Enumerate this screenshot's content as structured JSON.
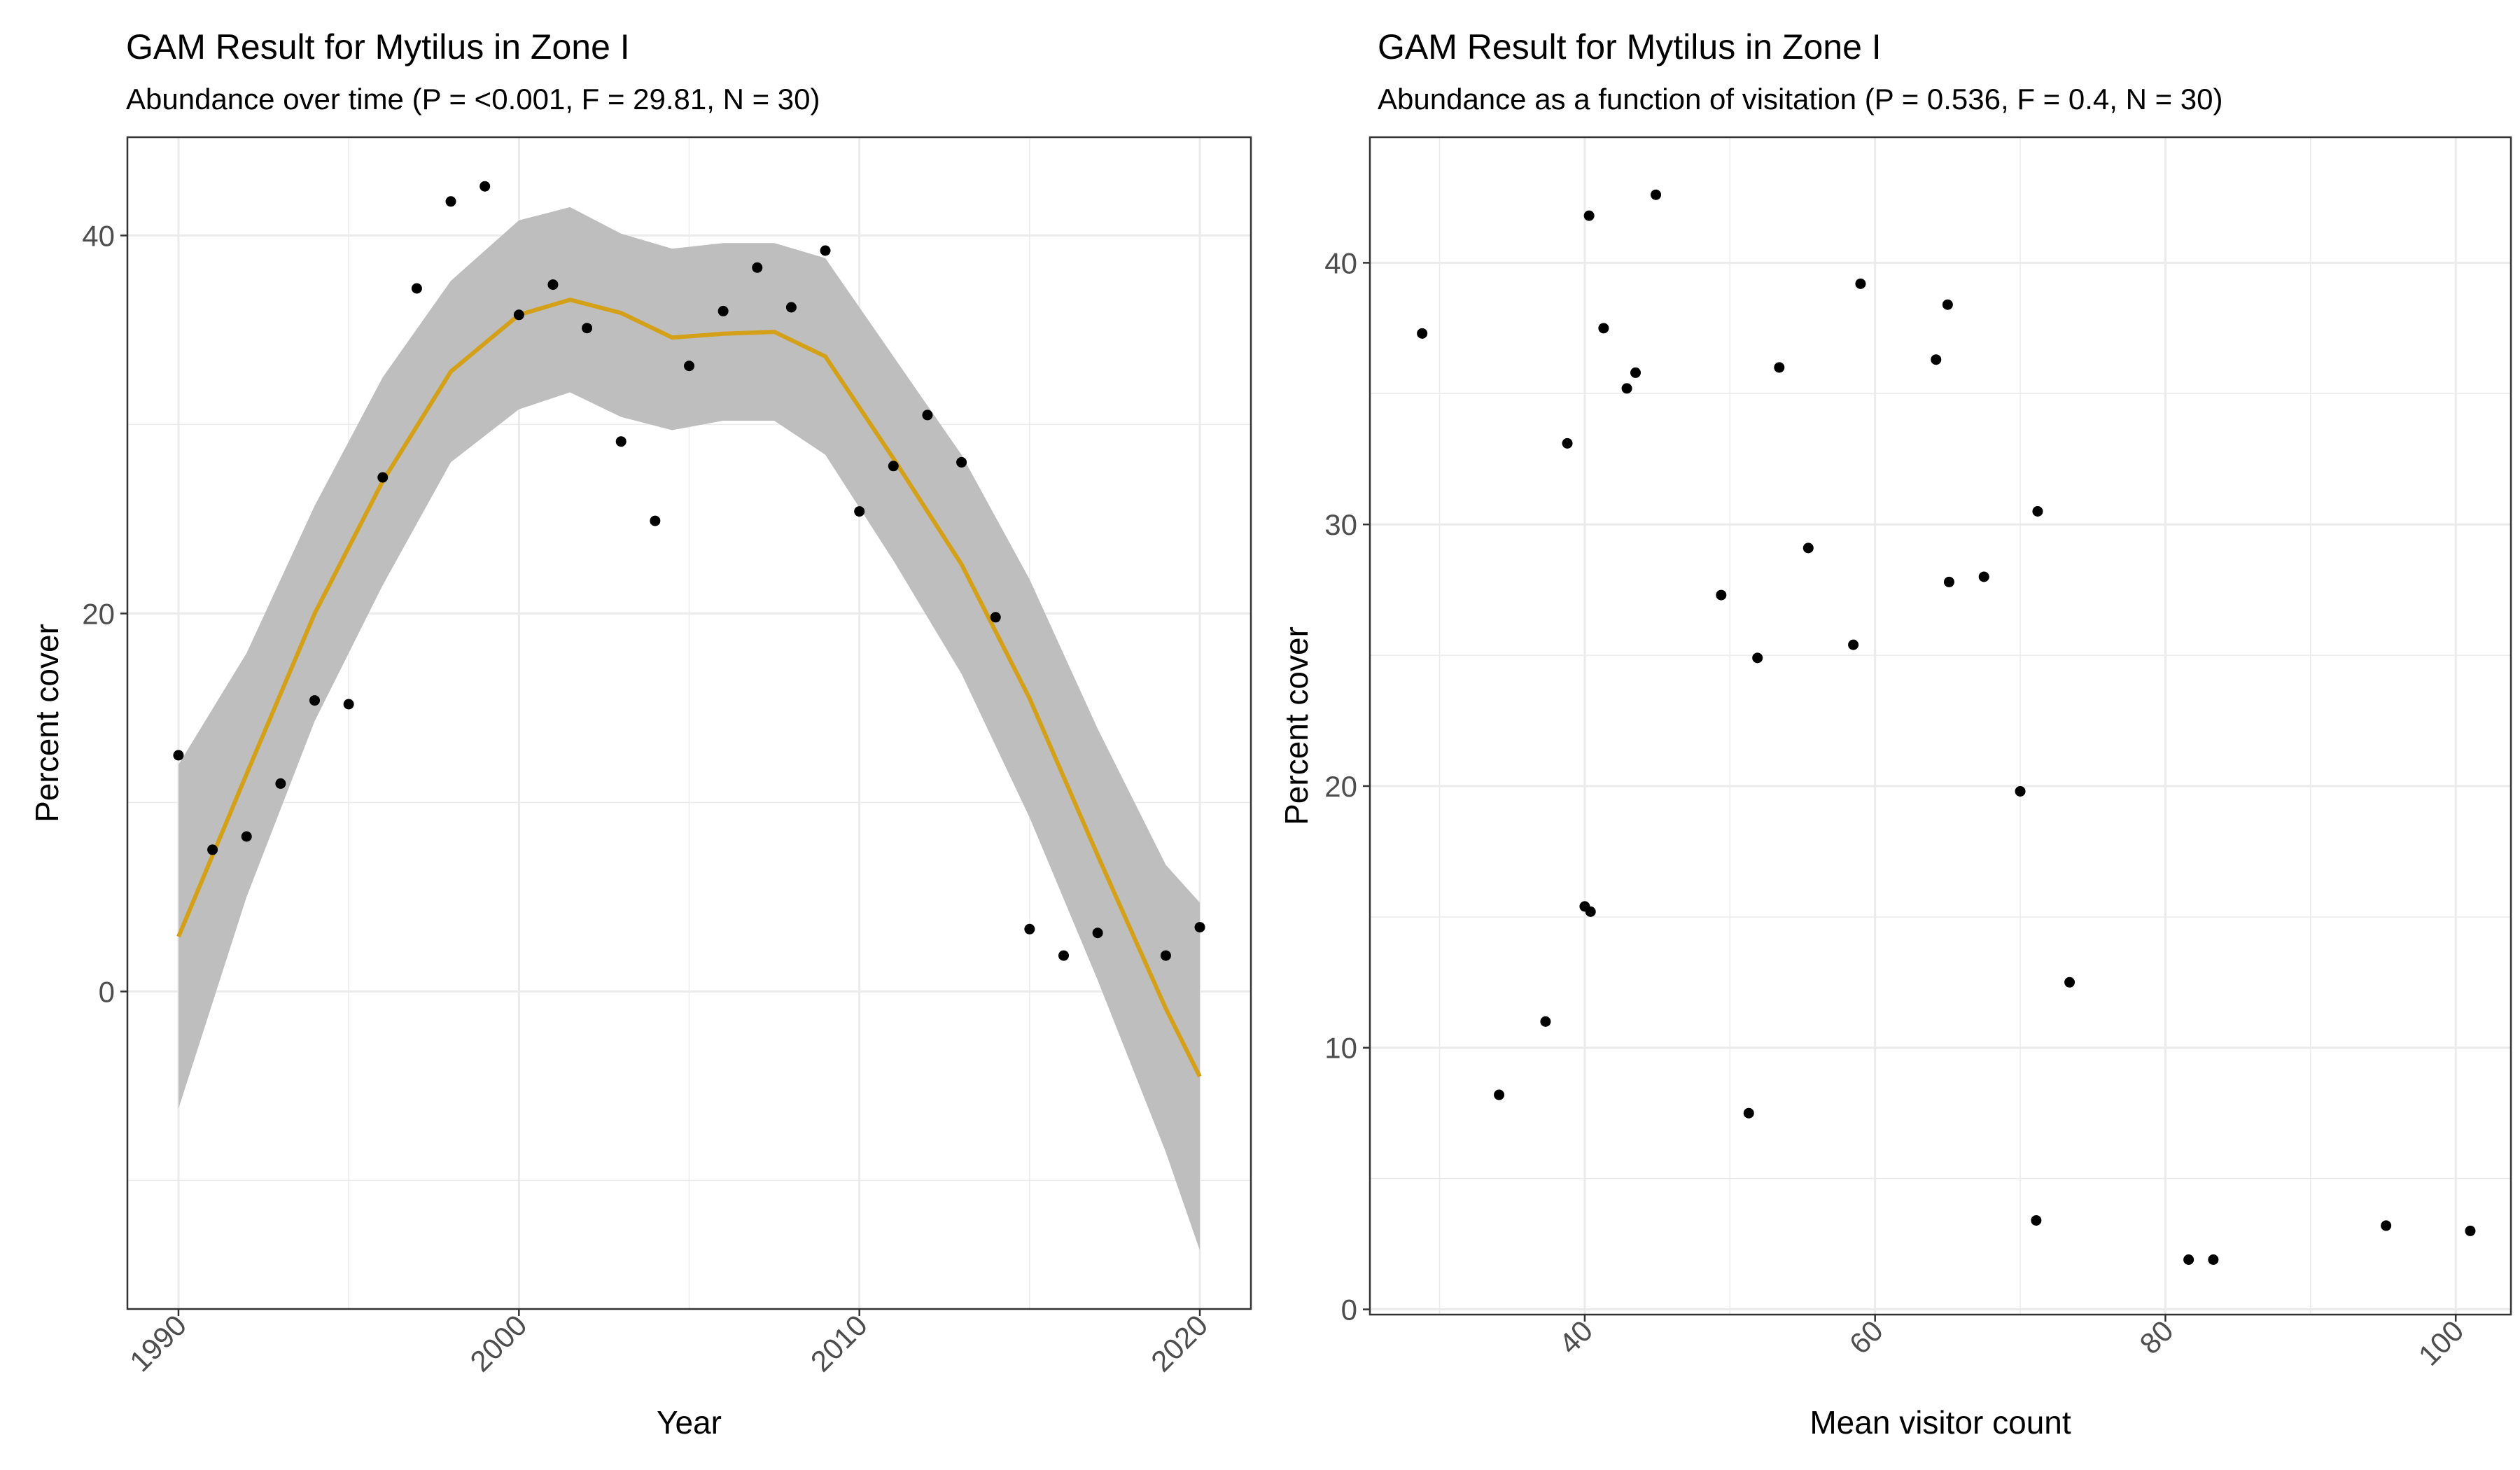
{
  "chart_data": [
    {
      "type": "scatter",
      "title": "GAM Result for Mytilus in Zone I",
      "subtitle": "Abundance over time (P = <0.001, F = 29.81, N = 30)",
      "xlabel": "Year",
      "ylabel": "Percent cover",
      "xlim": [
        1988.5,
        2021.5
      ],
      "ylim": [
        -16.8,
        45.2
      ],
      "x_ticks": [
        1990,
        2000,
        2010,
        2020
      ],
      "x_tick_labels": [
        "1990",
        "2000",
        "2010",
        "2020"
      ],
      "y_ticks": [
        0,
        20,
        40
      ],
      "y_tick_labels": [
        "0",
        "20",
        "40"
      ],
      "y_minor": [
        -10,
        10,
        30
      ],
      "x_minor": [
        1995,
        2005,
        2015
      ],
      "grid": true,
      "legend": "none",
      "colors": {
        "points": "#000000",
        "fit": "#D4A017",
        "ribbon": "#BEBEBE"
      },
      "points": [
        {
          "x": 1990,
          "y": 12.5
        },
        {
          "x": 1991,
          "y": 7.5
        },
        {
          "x": 1992,
          "y": 8.2
        },
        {
          "x": 1993,
          "y": 11.0
        },
        {
          "x": 1994,
          "y": 15.4
        },
        {
          "x": 1995,
          "y": 15.2
        },
        {
          "x": 1996,
          "y": 27.2
        },
        {
          "x": 1997,
          "y": 37.2
        },
        {
          "x": 1998,
          "y": 41.8
        },
        {
          "x": 1999,
          "y": 42.6
        },
        {
          "x": 2000,
          "y": 35.8
        },
        {
          "x": 2001,
          "y": 37.4
        },
        {
          "x": 2002,
          "y": 35.1
        },
        {
          "x": 2003,
          "y": 29.1
        },
        {
          "x": 2004,
          "y": 24.9
        },
        {
          "x": 2005,
          "y": 33.1
        },
        {
          "x": 2006,
          "y": 36.0
        },
        {
          "x": 2007,
          "y": 38.3
        },
        {
          "x": 2008,
          "y": 36.2
        },
        {
          "x": 2009,
          "y": 39.2
        },
        {
          "x": 2010,
          "y": 25.4
        },
        {
          "x": 2011,
          "y": 27.8
        },
        {
          "x": 2012,
          "y": 30.5
        },
        {
          "x": 2013,
          "y": 28.0
        },
        {
          "x": 2014,
          "y": 19.8
        },
        {
          "x": 2015,
          "y": 3.3
        },
        {
          "x": 2016,
          "y": 1.9
        },
        {
          "x": 2017,
          "y": 3.1
        },
        {
          "x": 2019,
          "y": 1.9
        },
        {
          "x": 2020,
          "y": 3.4
        }
      ],
      "fit": {
        "x": [
          1990,
          1992,
          1994,
          1996,
          1998,
          2000,
          2001.5,
          2003,
          2004.5,
          2006,
          2007.5,
          2009,
          2011,
          2013,
          2015,
          2017,
          2019,
          2020
        ],
        "y": [
          2.9,
          11.5,
          20.0,
          27.0,
          32.8,
          35.8,
          36.6,
          35.9,
          34.6,
          34.8,
          34.9,
          33.6,
          28.2,
          22.6,
          15.5,
          7.2,
          -0.9,
          -4.5
        ],
        "lower": [
          -6.2,
          5.0,
          14.3,
          21.5,
          28.0,
          30.8,
          31.7,
          30.4,
          29.7,
          30.2,
          30.2,
          28.4,
          22.8,
          16.8,
          9.2,
          0.6,
          -8.5,
          -13.7
        ],
        "upper": [
          12.0,
          17.9,
          25.7,
          32.5,
          37.6,
          40.8,
          41.5,
          40.1,
          39.3,
          39.6,
          39.6,
          38.8,
          33.6,
          28.4,
          21.8,
          13.9,
          6.7,
          4.7
        ]
      }
    },
    {
      "type": "scatter",
      "title": "GAM Result for Mytilus in Zone I",
      "subtitle": "Abundance as a function of visitation (P = 0.536, F = 0.4, N = 30)",
      "xlabel": "Mean visitor count",
      "ylabel": "Percent cover",
      "xlim": [
        25.2,
        103.8
      ],
      "ylim": [
        -0.2,
        44.8
      ],
      "x_ticks": [
        40,
        60,
        80,
        100
      ],
      "x_tick_labels": [
        "40",
        "60",
        "80",
        "100"
      ],
      "y_ticks": [
        0,
        10,
        20,
        30,
        40
      ],
      "y_tick_labels": [
        "0",
        "10",
        "20",
        "30",
        "40"
      ],
      "y_minor": [
        5,
        15,
        25,
        35
      ],
      "x_minor": [
        30,
        50,
        70,
        90
      ],
      "grid": true,
      "legend": "none",
      "colors": {
        "points": "#000000"
      },
      "points": [
        {
          "x": 28.8,
          "y": 37.3
        },
        {
          "x": 34.1,
          "y": 8.2
        },
        {
          "x": 37.3,
          "y": 11.0
        },
        {
          "x": 38.8,
          "y": 33.1
        },
        {
          "x": 40.0,
          "y": 15.4
        },
        {
          "x": 40.3,
          "y": 41.8
        },
        {
          "x": 40.4,
          "y": 15.2
        },
        {
          "x": 41.3,
          "y": 37.5
        },
        {
          "x": 42.9,
          "y": 35.2
        },
        {
          "x": 43.5,
          "y": 35.8
        },
        {
          "x": 44.9,
          "y": 42.6
        },
        {
          "x": 49.4,
          "y": 27.3
        },
        {
          "x": 51.3,
          "y": 7.5
        },
        {
          "x": 51.9,
          "y": 24.9
        },
        {
          "x": 53.4,
          "y": 36.0
        },
        {
          "x": 55.4,
          "y": 29.1
        },
        {
          "x": 58.5,
          "y": 25.4
        },
        {
          "x": 59.0,
          "y": 39.2
        },
        {
          "x": 64.2,
          "y": 36.3
        },
        {
          "x": 65.0,
          "y": 38.4
        },
        {
          "x": 65.1,
          "y": 27.8
        },
        {
          "x": 67.5,
          "y": 28.0
        },
        {
          "x": 70.0,
          "y": 19.8
        },
        {
          "x": 71.2,
          "y": 30.5
        },
        {
          "x": 71.1,
          "y": 3.4
        },
        {
          "x": 73.4,
          "y": 12.5
        },
        {
          "x": 81.6,
          "y": 1.9
        },
        {
          "x": 83.3,
          "y": 1.9
        },
        {
          "x": 95.2,
          "y": 3.2
        },
        {
          "x": 101.0,
          "y": 3.0
        }
      ]
    }
  ]
}
